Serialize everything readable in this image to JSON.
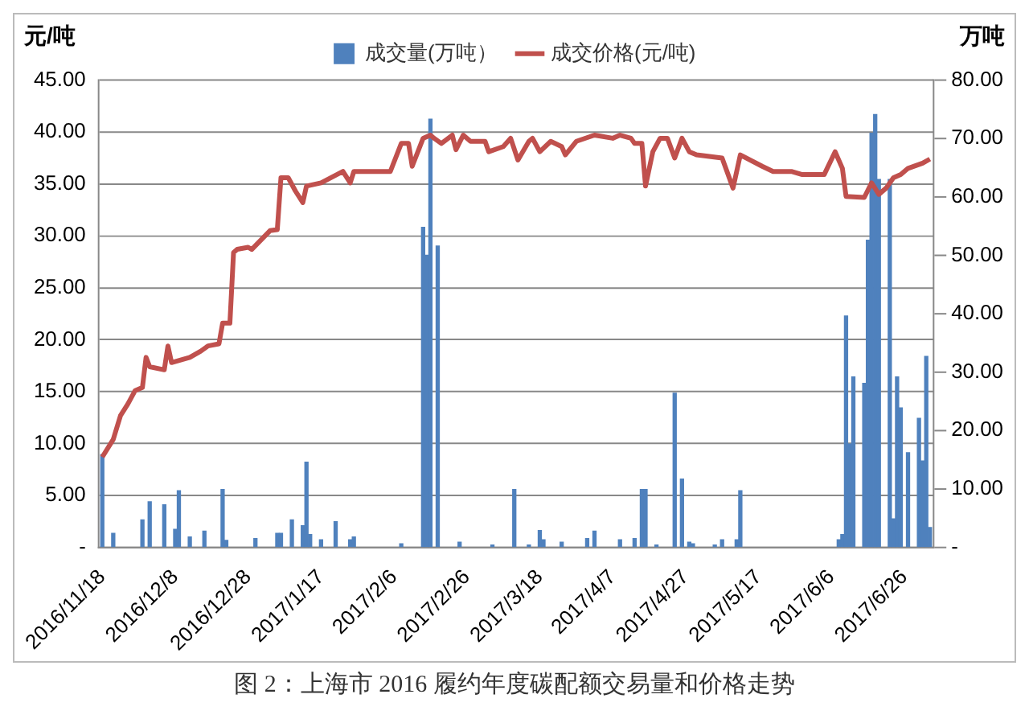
{
  "chart_data": {
    "type": "line",
    "ylabel": "元/吨",
    "y2label": "万吨",
    "annotations": [
      "图 2：上海市 2016 履约年度碳配额交易量和价格走势"
    ],
    "xlim": [
      "2016-11-17",
      "2017-07-04"
    ],
    "xticks": [
      {
        "value": "2016-11-18",
        "label": "2016/11/18"
      },
      {
        "value": "2016-12-08",
        "label": "2016/12/8"
      },
      {
        "value": "2016-12-28",
        "label": "2016/12/28"
      },
      {
        "value": "2017-01-17",
        "label": "2017/1/17"
      },
      {
        "value": "2017-02-06",
        "label": "2017/2/6"
      },
      {
        "value": "2017-02-26",
        "label": "2017/2/26"
      },
      {
        "value": "2017-03-18",
        "label": "2017/3/18"
      },
      {
        "value": "2017-04-07",
        "label": "2017/4/7"
      },
      {
        "value": "2017-04-27",
        "label": "2017/4/27"
      },
      {
        "value": "2017-05-17",
        "label": "2017/5/17"
      },
      {
        "value": "2017-06-06",
        "label": "2017/6/6"
      },
      {
        "value": "2017-06-26",
        "label": "2017/6/26"
      }
    ],
    "ylim": [
      0,
      45
    ],
    "yticks": [
      {
        "value": 0,
        "label": "-"
      },
      {
        "value": 5,
        "label": "5.00"
      },
      {
        "value": 10,
        "label": "10.00"
      },
      {
        "value": 15,
        "label": "15.00"
      },
      {
        "value": 20,
        "label": "20.00"
      },
      {
        "value": 25,
        "label": "25.00"
      },
      {
        "value": 30,
        "label": "30.00"
      },
      {
        "value": 35,
        "label": "35.00"
      },
      {
        "value": 40,
        "label": "40.00"
      },
      {
        "value": 45,
        "label": "45.00"
      }
    ],
    "y2lim": [
      0,
      80
    ],
    "y2ticks": [
      {
        "value": 0,
        "label": "-"
      },
      {
        "value": 10,
        "label": "10.00"
      },
      {
        "value": 20,
        "label": "20.00"
      },
      {
        "value": 30,
        "label": "30.00"
      },
      {
        "value": 40,
        "label": "40.00"
      },
      {
        "value": 50,
        "label": "50.00"
      },
      {
        "value": 60,
        "label": "60.00"
      },
      {
        "value": 70,
        "label": "70.00"
      },
      {
        "value": 80,
        "label": "80.00"
      }
    ],
    "grid": "y",
    "legend": "top",
    "marker": "none",
    "line_style": "solid",
    "series": [
      {
        "name": "成交量(万吨）",
        "type": "bar",
        "axis": "y2",
        "color": "#4f81bd",
        "x": [
          "2016-11-18",
          "2016-11-21",
          "2016-11-29",
          "2016-12-01",
          "2016-12-05",
          "2016-12-08",
          "2016-12-09",
          "2016-12-12",
          "2016-12-16",
          "2016-12-21",
          "2016-12-22",
          "2016-12-30",
          "2017-01-05",
          "2017-01-06",
          "2017-01-09",
          "2017-01-12",
          "2017-01-13",
          "2017-01-14",
          "2017-01-17",
          "2017-01-21",
          "2017-01-25",
          "2017-01-26",
          "2017-02-08",
          "2017-02-14",
          "2017-02-15",
          "2017-02-16",
          "2017-02-18",
          "2017-02-24",
          "2017-03-05",
          "2017-03-11",
          "2017-03-15",
          "2017-03-18",
          "2017-03-19",
          "2017-03-24",
          "2017-03-31",
          "2017-04-02",
          "2017-04-09",
          "2017-04-13",
          "2017-04-15",
          "2017-04-16",
          "2017-04-19",
          "2017-04-24",
          "2017-04-26",
          "2017-04-28",
          "2017-04-29",
          "2017-05-05",
          "2017-05-07",
          "2017-05-11",
          "2017-05-12",
          "2017-06-08",
          "2017-06-09",
          "2017-06-10",
          "2017-06-11",
          "2017-06-12",
          "2017-06-15",
          "2017-06-16",
          "2017-06-17",
          "2017-06-18",
          "2017-06-19",
          "2017-06-22",
          "2017-06-23",
          "2017-06-24",
          "2017-06-25",
          "2017-06-27",
          "2017-06-30",
          "2017-07-01",
          "2017-07-02",
          "2017-07-03"
        ],
        "values": [
          15.9,
          2.4,
          4.7,
          7.8,
          7.3,
          3.1,
          9.7,
          1.8,
          2.8,
          9.9,
          1.2,
          1.5,
          2.4,
          2.4,
          4.7,
          3.7,
          14.6,
          2.2,
          1.3,
          4.4,
          1.3,
          1.8,
          0.6,
          54.8,
          50.0,
          73.3,
          51.6,
          0.9,
          0.4,
          9.9,
          0.4,
          2.9,
          1.3,
          0.9,
          1.5,
          2.8,
          1.3,
          1.5,
          9.9,
          9.9,
          0.4,
          26.4,
          11.7,
          0.9,
          0.6,
          0.4,
          1.3,
          1.3,
          9.7,
          1.3,
          2.2,
          39.6,
          17.7,
          29.2,
          28.1,
          52.6,
          70.9,
          74.1,
          63.0,
          63.0,
          4.9,
          29.2,
          23.9,
          16.2,
          22.1,
          14.8,
          32.7,
          3.4
        ]
      },
      {
        "name": "成交价格(元/吨)",
        "color": "#c0504d",
        "x": [
          "2016-11-18",
          "2016-11-21",
          "2016-11-23",
          "2016-11-25",
          "2016-11-27",
          "2016-11-29",
          "2016-11-30",
          "2016-12-01",
          "2016-12-05",
          "2016-12-06",
          "2016-12-07",
          "2016-12-12",
          "2016-12-15",
          "2016-12-17",
          "2016-12-20",
          "2016-12-21",
          "2016-12-23",
          "2016-12-24",
          "2016-12-25",
          "2016-12-28",
          "2016-12-29",
          "2017-01-03",
          "2017-01-05",
          "2017-01-06",
          "2017-01-08",
          "2017-01-10",
          "2017-01-12",
          "2017-01-13",
          "2017-01-17",
          "2017-01-23",
          "2017-01-25",
          "2017-01-26",
          "2017-02-05",
          "2017-02-08",
          "2017-02-10",
          "2017-02-11",
          "2017-02-14",
          "2017-02-16",
          "2017-02-17",
          "2017-02-19",
          "2017-02-22",
          "2017-02-23",
          "2017-02-25",
          "2017-02-27",
          "2017-03-03",
          "2017-03-04",
          "2017-03-08",
          "2017-03-10",
          "2017-03-12",
          "2017-03-15",
          "2017-03-16",
          "2017-03-18",
          "2017-03-21",
          "2017-03-24",
          "2017-03-25",
          "2017-03-28",
          "2017-04-02",
          "2017-04-07",
          "2017-04-09",
          "2017-04-12",
          "2017-04-13",
          "2017-04-15",
          "2017-04-16",
          "2017-04-18",
          "2017-04-20",
          "2017-04-22",
          "2017-04-24",
          "2017-04-26",
          "2017-04-28",
          "2017-04-30",
          "2017-05-07",
          "2017-05-10",
          "2017-05-12",
          "2017-05-18",
          "2017-05-21",
          "2017-05-26",
          "2017-05-29",
          "2017-06-04",
          "2017-06-07",
          "2017-06-09",
          "2017-06-10",
          "2017-06-15",
          "2017-06-17",
          "2017-06-19",
          "2017-06-21",
          "2017-06-23",
          "2017-06-25",
          "2017-06-27",
          "2017-07-01",
          "2017-07-03"
        ],
        "values": [
          8.7,
          10.4,
          12.7,
          13.8,
          15.1,
          15.4,
          18.3,
          17.4,
          17.1,
          19.4,
          17.8,
          18.3,
          18.9,
          19.4,
          19.6,
          21.6,
          21.6,
          28.4,
          28.7,
          28.9,
          28.7,
          30.5,
          30.6,
          35.6,
          35.6,
          34.3,
          33.2,
          34.8,
          35.1,
          36.2,
          35.1,
          36.2,
          36.2,
          38.9,
          38.9,
          36.7,
          39.4,
          39.7,
          39.4,
          38.9,
          39.7,
          38.3,
          39.7,
          39.1,
          39.1,
          38.1,
          38.6,
          39.4,
          37.3,
          39.1,
          39.4,
          38.1,
          39.1,
          38.6,
          37.8,
          39.1,
          39.7,
          39.4,
          39.7,
          39.4,
          38.9,
          38.9,
          34.8,
          38.1,
          39.4,
          39.4,
          37.5,
          39.4,
          38.1,
          37.8,
          37.5,
          34.6,
          37.8,
          36.7,
          36.2,
          36.2,
          35.9,
          35.9,
          38.1,
          36.5,
          33.8,
          33.7,
          35.1,
          34.0,
          34.6,
          35.6,
          35.9,
          36.5,
          37.0,
          37.4
        ]
      }
    ]
  }
}
